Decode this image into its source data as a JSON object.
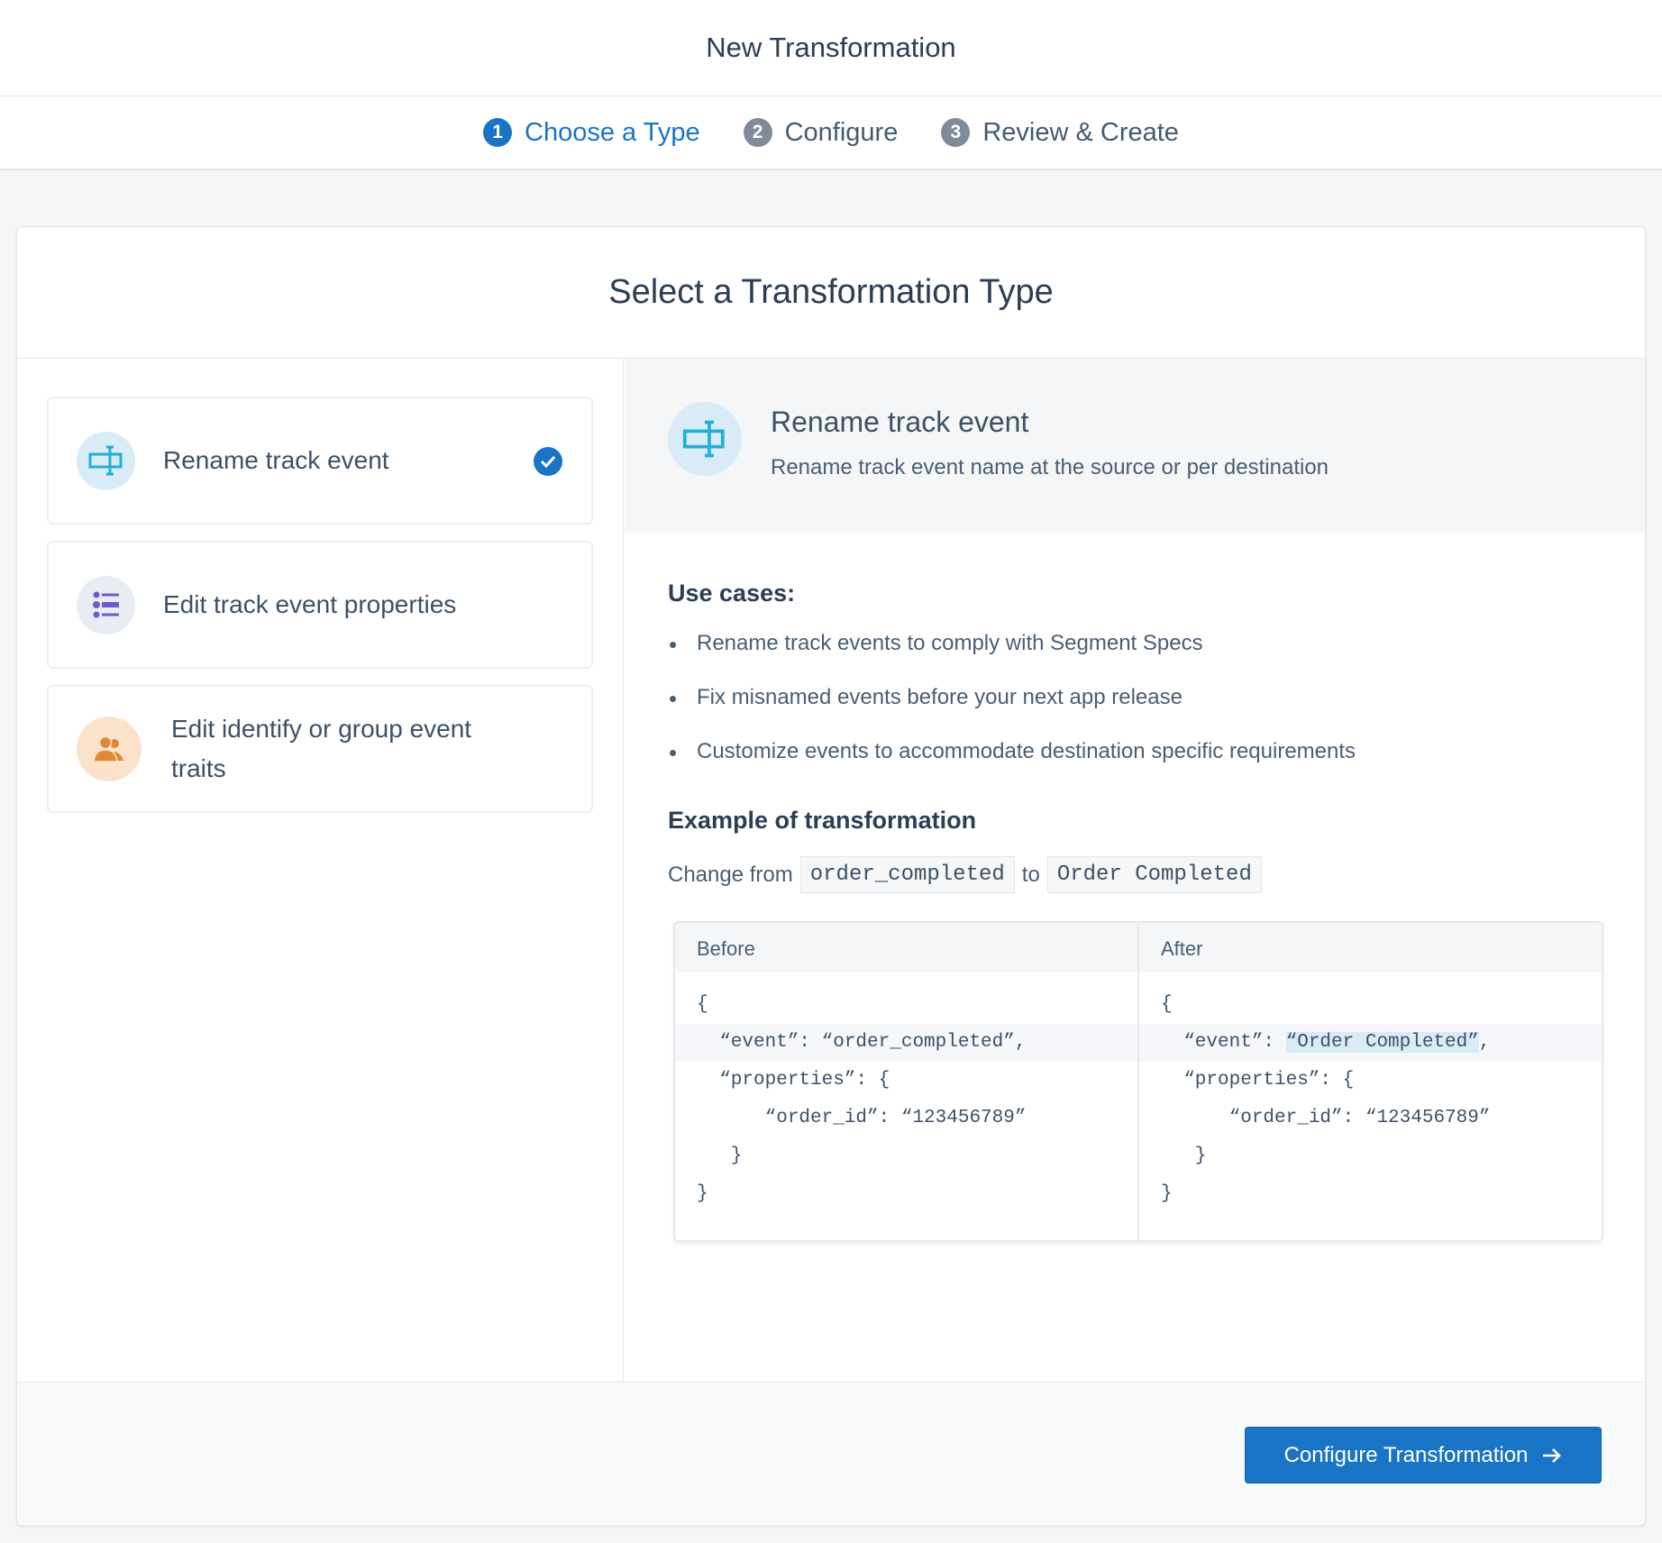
{
  "header": {
    "title": "New Transformation"
  },
  "steps": [
    {
      "num": "1",
      "label": "Choose a Type",
      "active": true
    },
    {
      "num": "2",
      "label": "Configure"
    },
    {
      "num": "3",
      "label": "Review & Create"
    }
  ],
  "card": {
    "title": "Select a Transformation Type"
  },
  "options": [
    {
      "label": "Rename track event",
      "icon": "rename-icon",
      "selected": true
    },
    {
      "label": "Edit track event properties",
      "icon": "list-icon"
    },
    {
      "label": "Edit identify or group event traits",
      "icon": "users-icon"
    }
  ],
  "detail": {
    "title": "Rename track event",
    "description": "Rename track event name at the source or per destination",
    "use_cases_heading": "Use cases:",
    "use_cases": [
      "Rename track events to comply with Segment Specs",
      "Fix misnamed events before your next app release",
      "Customize events to accommodate destination specific requirements"
    ],
    "example_heading": "Example of transformation",
    "change_from": "Change from",
    "from_value": "order_completed",
    "to": "to",
    "to_value": "Order Completed",
    "before": {
      "header": "Before",
      "lines": [
        "{",
        "  “event”: “order_completed”,",
        "  “properties”: {",
        "      “order_id”: “123456789”",
        "   }",
        "}"
      ]
    },
    "after": {
      "header": "After",
      "lines": [
        "{",
        "  “event”: ",
        "  “properties”: {",
        "      “order_id”: “123456789”",
        "   }",
        "}"
      ],
      "highlight": "“Order Completed”",
      "highlight_suffix": ","
    }
  },
  "footer": {
    "button_label": "Configure Transformation"
  },
  "colors": {
    "accent": "#1a74c6",
    "rename_icon": "#1fb1d8",
    "list_icon": "#7158d3",
    "users_icon": "#dd8a38"
  }
}
